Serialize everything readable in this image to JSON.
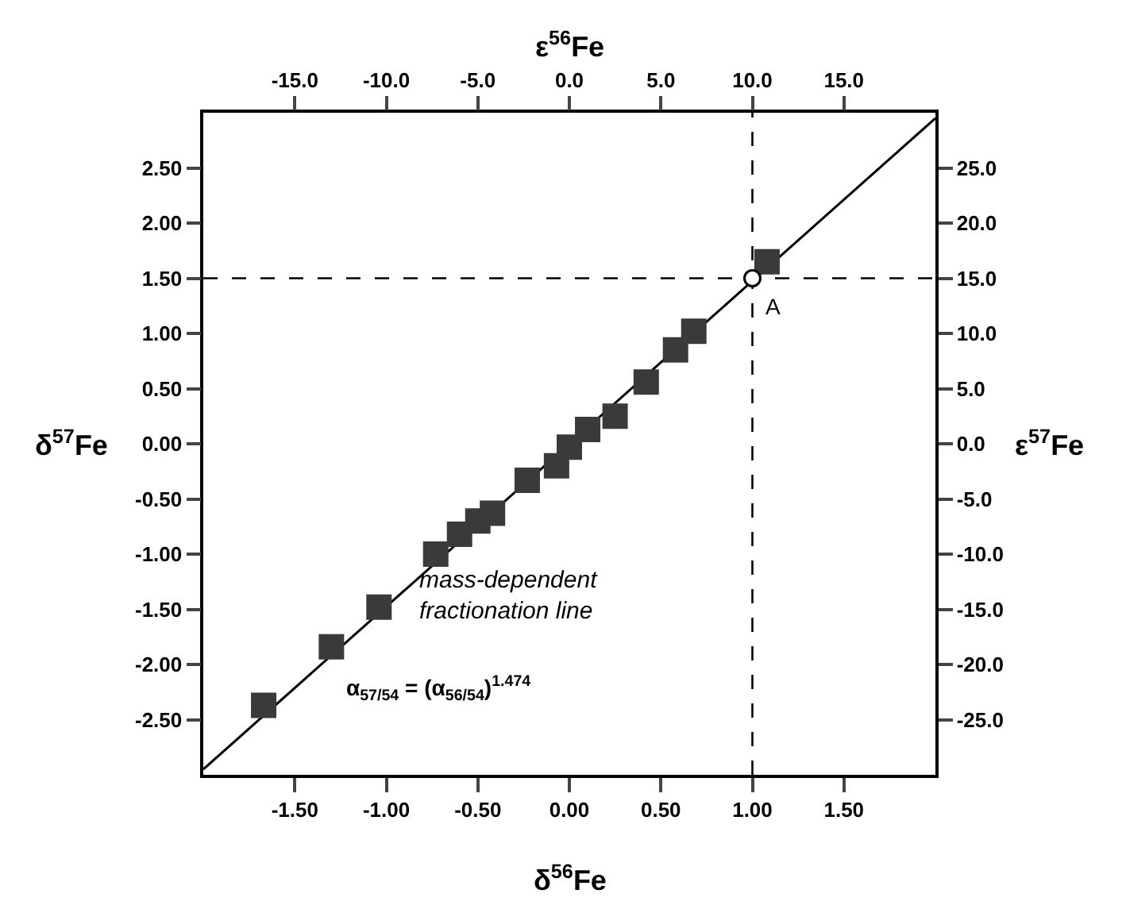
{
  "chart_data": {
    "type": "scatter",
    "xlabel": "δ$^{56}$Fe",
    "ylabel": "δ$^{57}$Fe",
    "x2label": "ε$^{56}$Fe",
    "y2label": "ε$^{57}$Fe",
    "series": [
      {
        "marker": "square",
        "color": "#3a3a3a",
        "x": [
          -1.67,
          -1.3,
          -1.04,
          -0.73,
          -0.6,
          -0.5,
          -0.42,
          -0.23,
          -0.07,
          0.0,
          0.1,
          0.25,
          0.42,
          0.58,
          0.68,
          1.08
        ],
        "values": [
          -2.37,
          -1.84,
          -1.48,
          -1.0,
          -0.82,
          -0.7,
          -0.63,
          -0.33,
          -0.2,
          -0.03,
          0.13,
          0.25,
          0.56,
          0.85,
          1.02,
          1.65
        ]
      },
      {
        "type": "line",
        "color": "#000000",
        "x": [
          -2.0,
          2.0
        ],
        "values": [
          -2.95,
          2.95
        ]
      },
      {
        "type": "scatter",
        "marker": "circle",
        "color": "#ffffff",
        "x": [
          1.0
        ],
        "values": [
          1.5
        ]
      }
    ],
    "xlim": [
      -2,
      2
    ],
    "ylim": [
      -3,
      3
    ],
    "x2lim": [
      -20,
      20
    ],
    "y2lim": [
      -30,
      30
    ],
    "xticks": [
      {
        "value": -1.5,
        "label": "-1.50"
      },
      {
        "value": -1,
        "label": "-1.00"
      },
      {
        "value": -0.5,
        "label": "-0.50"
      },
      {
        "value": 0,
        "label": "0.00"
      },
      {
        "value": 0.5,
        "label": "0.50"
      },
      {
        "value": 1,
        "label": "1.00"
      },
      {
        "value": 1.5,
        "label": "1.50"
      }
    ],
    "yticks": [
      {
        "value": -2.5,
        "label": "-2.50"
      },
      {
        "value": -2,
        "label": "-2.00"
      },
      {
        "value": -1.5,
        "label": "-1.50"
      },
      {
        "value": -1,
        "label": "-1.00"
      },
      {
        "value": -0.5,
        "label": "-0.50"
      },
      {
        "value": 0,
        "label": "0.00"
      },
      {
        "value": 0.5,
        "label": "0.50"
      },
      {
        "value": 1,
        "label": "1.00"
      },
      {
        "value": 1.5,
        "label": "1.50"
      },
      {
        "value": 2,
        "label": "2.00"
      },
      {
        "value": 2.5,
        "label": "2.50"
      }
    ],
    "x2ticks": [
      {
        "value": -15,
        "label": "-15.0"
      },
      {
        "value": -10,
        "label": "-10.0"
      },
      {
        "value": -5,
        "label": "-5.0"
      },
      {
        "value": 0,
        "label": "0.0"
      },
      {
        "value": 5,
        "label": "5.0"
      },
      {
        "value": 10,
        "label": "10.0"
      },
      {
        "value": 15,
        "label": "15.0"
      }
    ],
    "y2ticks": [
      {
        "value": -25,
        "label": "-25.0"
      },
      {
        "value": -20,
        "label": "-20.0"
      },
      {
        "value": -15,
        "label": "-15.0"
      },
      {
        "value": -10,
        "label": "-10.0"
      },
      {
        "value": -5,
        "label": "-5.0"
      },
      {
        "value": 0,
        "label": "0.0"
      },
      {
        "value": 5,
        "label": "5.0"
      },
      {
        "value": 10,
        "label": "10.0"
      },
      {
        "value": 15,
        "label": "15.0"
      },
      {
        "value": 20,
        "label": "20.0"
      },
      {
        "value": 25,
        "label": "25.0"
      }
    ],
    "ref_lines": [
      {
        "axis": "x",
        "value": 1.0,
        "color": "#000000",
        "line_style": "dashed"
      },
      {
        "axis": "y",
        "value": 1.5,
        "color": "#000000",
        "line_style": "dashed"
      }
    ],
    "annotations": [
      {
        "text": "A",
        "x": 1.0,
        "y": 1.5
      },
      "mass-dependent\nfractionation line",
      "α$_{57/54}$ = (α$_{56/54}$)$^{1.474}$"
    ],
    "grid": false
  }
}
